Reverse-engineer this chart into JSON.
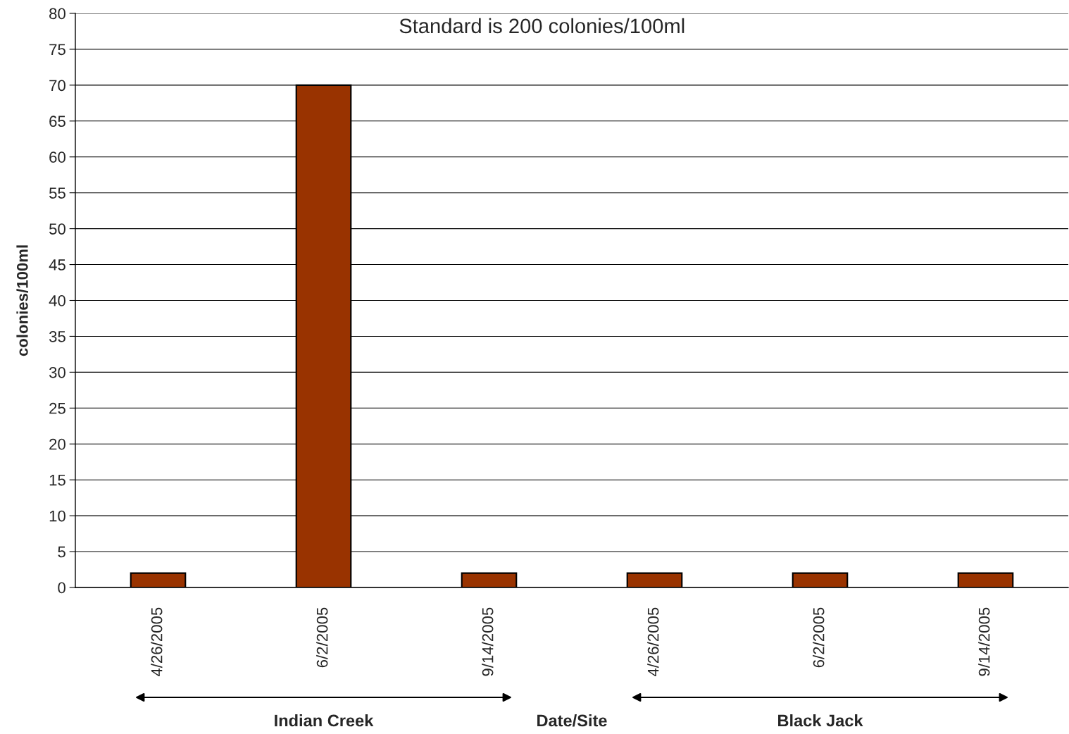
{
  "chart_data": {
    "type": "bar",
    "categories": [
      "4/26/2005",
      "6/2/2005",
      "9/14/2005",
      "4/26/2005",
      "6/2/2005",
      "9/14/2005"
    ],
    "values": [
      2,
      70,
      2,
      2,
      2,
      2
    ],
    "color": "#993300",
    "xlabel": "Date/Site",
    "ylabel": "colonies/100ml",
    "ylim": [
      0,
      80
    ],
    "yticks": [
      0,
      5,
      10,
      15,
      20,
      25,
      30,
      35,
      40,
      45,
      50,
      55,
      60,
      65,
      70,
      75,
      80
    ],
    "grid": "y",
    "annotations": [
      "Standard is 200 colonies/100ml",
      "Indian Creek",
      "Black Jack"
    ]
  }
}
